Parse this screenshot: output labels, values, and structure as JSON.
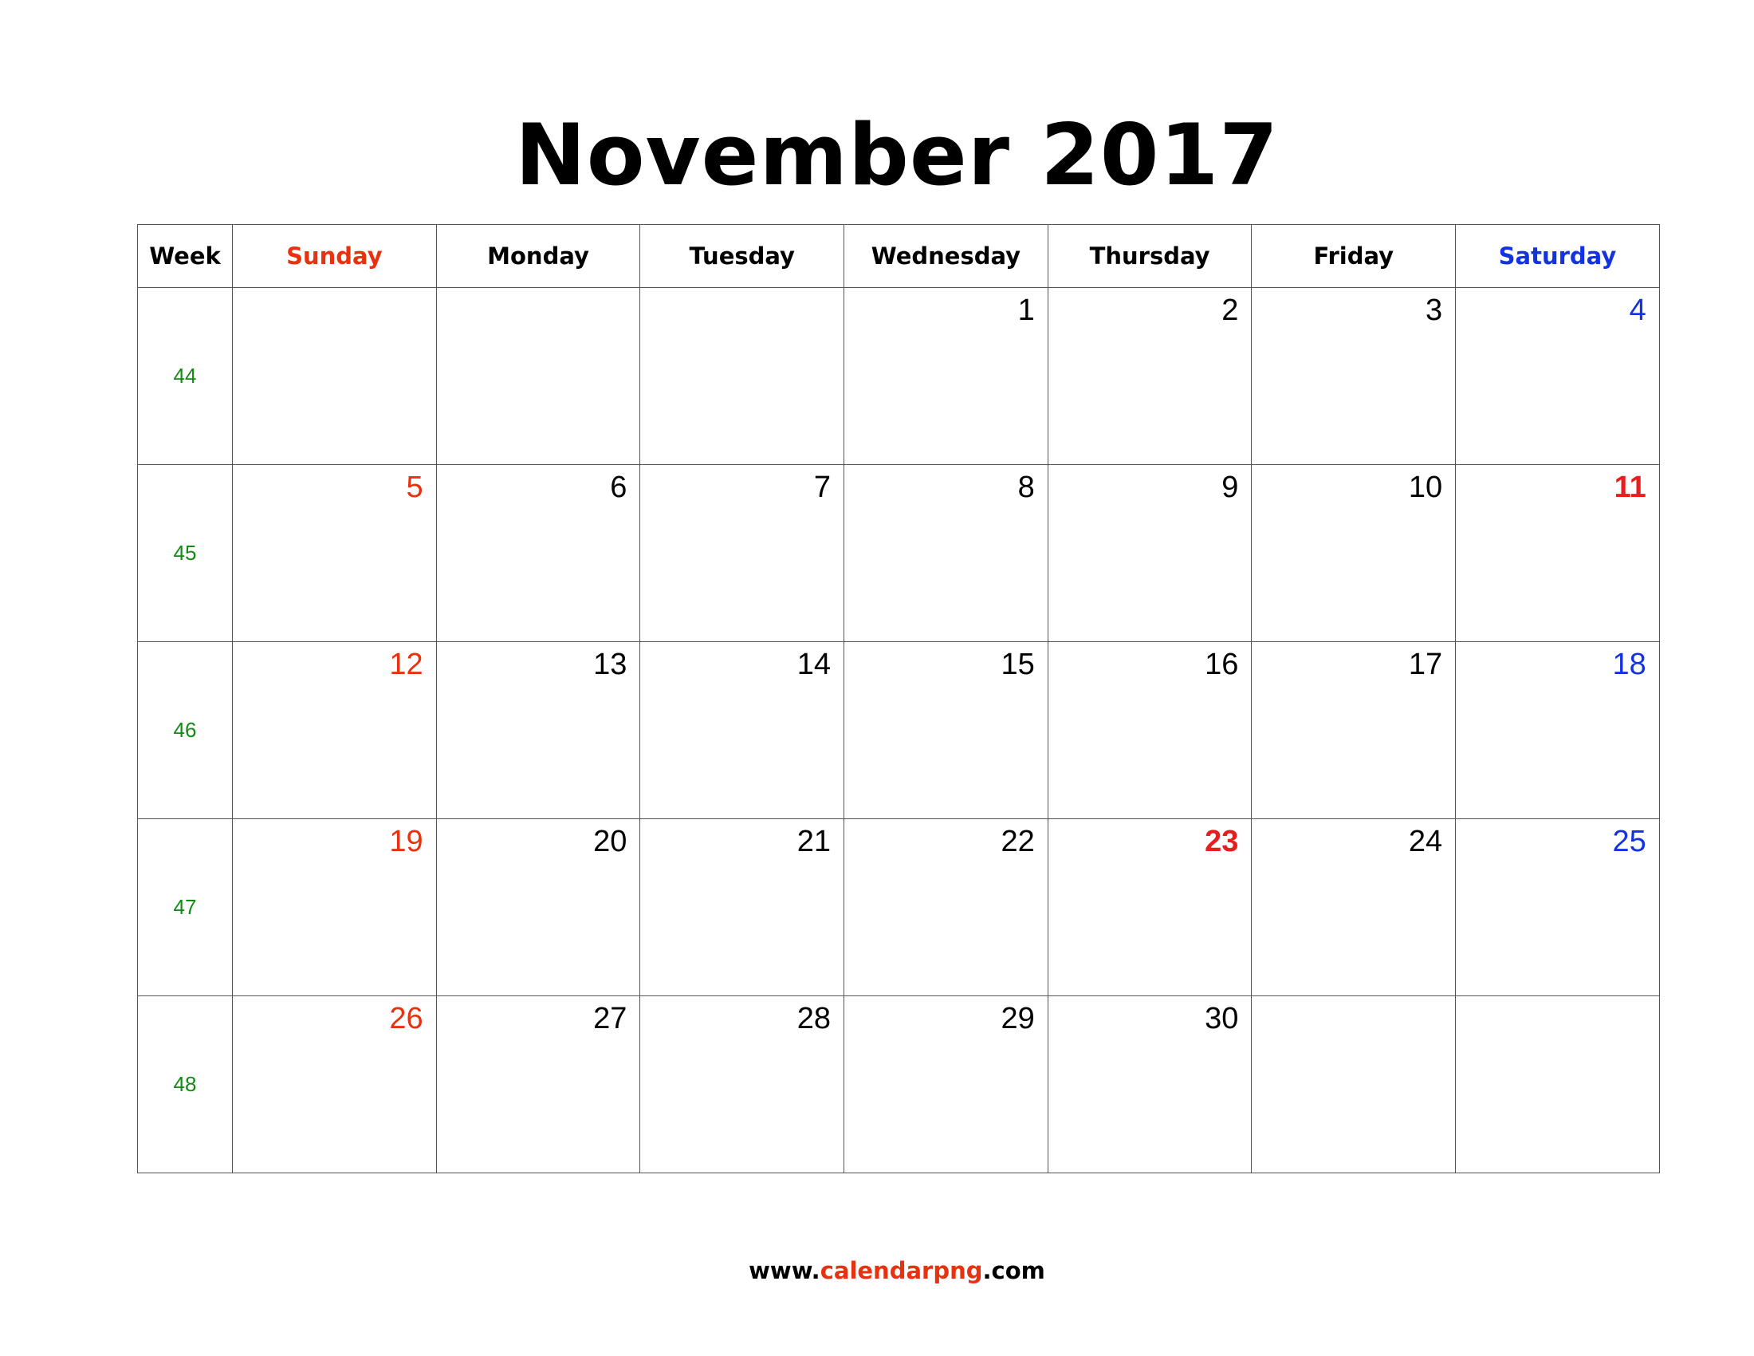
{
  "title": "November 2017",
  "colors": {
    "sunday": "#e8320f",
    "saturday": "#1433e0",
    "holiday": "#e61e1e",
    "week_number": "#138a13",
    "text": "#000000",
    "grid": "#555555"
  },
  "headers": {
    "week": "Week",
    "days": [
      "Sunday",
      "Monday",
      "Tuesday",
      "Wednesday",
      "Thursday",
      "Friday",
      "Saturday"
    ]
  },
  "weeks": [
    {
      "number": "44",
      "days": [
        "",
        "",
        "",
        "1",
        "2",
        "3",
        "4"
      ]
    },
    {
      "number": "45",
      "days": [
        "5",
        "6",
        "7",
        "8",
        "9",
        "10",
        "11"
      ]
    },
    {
      "number": "46",
      "days": [
        "12",
        "13",
        "14",
        "15",
        "16",
        "17",
        "18"
      ]
    },
    {
      "number": "47",
      "days": [
        "19",
        "20",
        "21",
        "22",
        "23",
        "24",
        "25"
      ]
    },
    {
      "number": "48",
      "days": [
        "26",
        "27",
        "28",
        "29",
        "30",
        "",
        ""
      ]
    }
  ],
  "holidays": [
    "11",
    "23"
  ],
  "footer": {
    "prefix": "www.",
    "brand": "calendarpng",
    "suffix": ".com"
  }
}
